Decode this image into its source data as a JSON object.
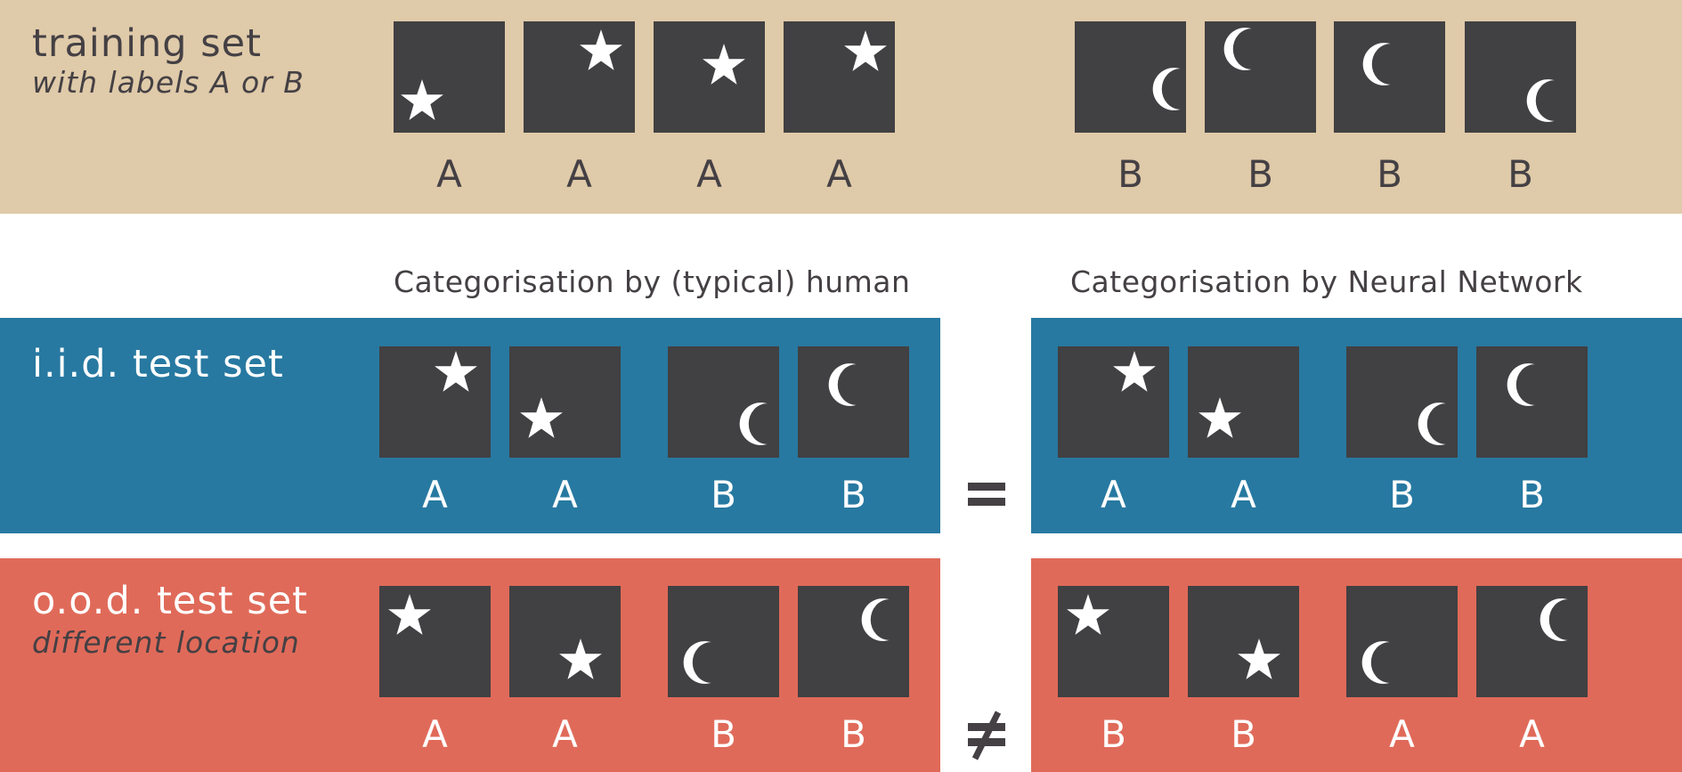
{
  "colors": {
    "training_bg": "#dfcaa9",
    "iid_bg": "#2779a1",
    "ood_bg": "#e06a59",
    "tile": "#414042",
    "shape": "#ffffff",
    "dark_text": "#444044"
  },
  "training": {
    "title": "training set",
    "subtitle": "with labels A or B",
    "tiles": [
      {
        "shape": "star-icon",
        "label": "A"
      },
      {
        "shape": "star-icon",
        "label": "A"
      },
      {
        "shape": "star-icon",
        "label": "A"
      },
      {
        "shape": "star-icon",
        "label": "A"
      },
      {
        "shape": "moon-icon",
        "label": "B"
      },
      {
        "shape": "moon-icon",
        "label": "B"
      },
      {
        "shape": "moon-icon",
        "label": "B"
      },
      {
        "shape": "moon-icon",
        "label": "B"
      }
    ]
  },
  "columns": {
    "human": "Categorisation by (typical) human",
    "network": "Categorisation by Neural Network"
  },
  "iid": {
    "title": "i.i.d. test set",
    "relation": "=",
    "human_labels": [
      "A",
      "A",
      "B",
      "B"
    ],
    "network_labels": [
      "A",
      "A",
      "B",
      "B"
    ]
  },
  "ood": {
    "title": "o.o.d. test set",
    "subtitle": "different location",
    "relation": "≠",
    "human_labels": [
      "A",
      "A",
      "B",
      "B"
    ],
    "network_labels": [
      "B",
      "B",
      "A",
      "A"
    ]
  }
}
